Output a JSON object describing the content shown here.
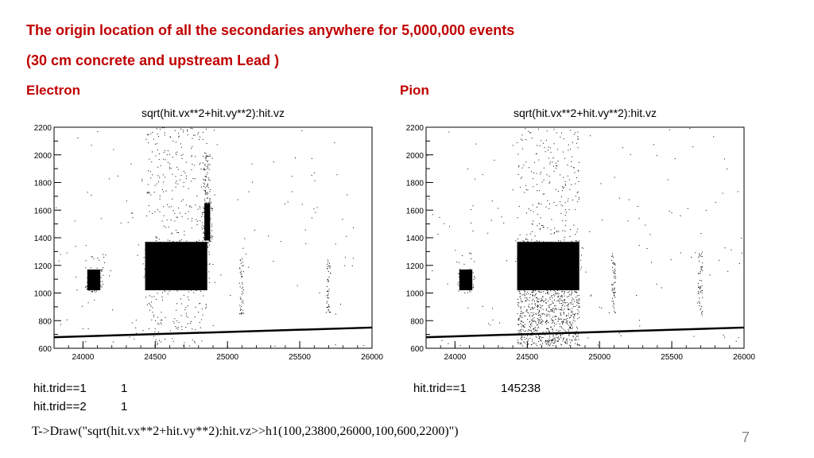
{
  "slide": {
    "title_line1": "The origin location of all the secondaries anywhere for 5,000,000 events",
    "title_line2": "(30 cm concrete and upstream Lead )",
    "page_number": "7",
    "command": "T->Draw(\"sqrt(hit.vx**2+hit.vy**2):hit.vz>>h1(100,23800,26000,100,600,2200)\")",
    "accent_color": "#c00000"
  },
  "left_stats": [
    {
      "cut": "hit.trid==1",
      "count": "1"
    },
    {
      "cut": "hit.trid==2",
      "count": "1"
    }
  ],
  "right_stats": [
    {
      "cut": "hit.trid==1",
      "count": "145238"
    }
  ],
  "chart_data": [
    {
      "type": "scatter",
      "label": "Electron",
      "title": "sqrt(hit.vx**2+hit.vy**2):hit.vz",
      "xlabel": "",
      "ylabel": "",
      "xlim": [
        23800,
        26000
      ],
      "ylim": [
        600,
        2200
      ],
      "xticks": [
        24000,
        24500,
        25000,
        25500,
        26000
      ],
      "yticks": [
        600,
        800,
        1000,
        1200,
        1400,
        1600,
        1800,
        2000,
        2200
      ],
      "regions": [
        {
          "x": [
            24030,
            24120
          ],
          "y": [
            1020,
            1170
          ],
          "density": "dense"
        },
        {
          "x": [
            24000,
            24150
          ],
          "y": [
            1200,
            1300
          ],
          "density": "sparse"
        },
        {
          "x": [
            24430,
            24860
          ],
          "y": [
            1020,
            1370
          ],
          "density": "dense"
        },
        {
          "x": [
            24840,
            24880
          ],
          "y": [
            1380,
            1650
          ],
          "density": "dense"
        },
        {
          "x": [
            24830,
            24880
          ],
          "y": [
            1650,
            2000
          ],
          "density": "medium"
        },
        {
          "x": [
            24430,
            24860
          ],
          "y": [
            1370,
            2200
          ],
          "density": "sparse"
        },
        {
          "x": [
            24430,
            24860
          ],
          "y": [
            620,
            1020
          ],
          "density": "sparse"
        },
        {
          "x": [
            25080,
            25110
          ],
          "y": [
            850,
            1250
          ],
          "density": "medium"
        },
        {
          "x": [
            25680,
            25710
          ],
          "y": [
            850,
            1250
          ],
          "density": "medium"
        },
        {
          "x": [
            23800,
            26000
          ],
          "y": [
            600,
            2200
          ],
          "density": "background"
        }
      ],
      "floor_line": {
        "x": [
          23800,
          26000
        ],
        "y": [
          680,
          750
        ]
      }
    },
    {
      "type": "scatter",
      "label": "Pion",
      "title": "sqrt(hit.vx**2+hit.vy**2):hit.vz",
      "xlabel": "",
      "ylabel": "",
      "xlim": [
        23800,
        26000
      ],
      "ylim": [
        600,
        2200
      ],
      "xticks": [
        24000,
        24500,
        25000,
        25500,
        26000
      ],
      "yticks": [
        600,
        800,
        1000,
        1200,
        1400,
        1600,
        1800,
        2000,
        2200
      ],
      "regions": [
        {
          "x": [
            24030,
            24120
          ],
          "y": [
            1020,
            1170
          ],
          "density": "dense"
        },
        {
          "x": [
            24000,
            24150
          ],
          "y": [
            1200,
            1300
          ],
          "density": "sparse"
        },
        {
          "x": [
            24430,
            24860
          ],
          "y": [
            1020,
            1370
          ],
          "density": "dense"
        },
        {
          "x": [
            24430,
            24860
          ],
          "y": [
            1370,
            2200
          ],
          "density": "sparse"
        },
        {
          "x": [
            24430,
            24860
          ],
          "y": [
            620,
            1020
          ],
          "density": "medium"
        },
        {
          "x": [
            25080,
            25110
          ],
          "y": [
            850,
            1300
          ],
          "density": "medium"
        },
        {
          "x": [
            25680,
            25710
          ],
          "y": [
            850,
            1300
          ],
          "density": "medium"
        },
        {
          "x": [
            23800,
            26000
          ],
          "y": [
            600,
            2200
          ],
          "density": "background"
        }
      ],
      "floor_line": {
        "x": [
          23800,
          26000
        ],
        "y": [
          680,
          750
        ]
      }
    }
  ]
}
